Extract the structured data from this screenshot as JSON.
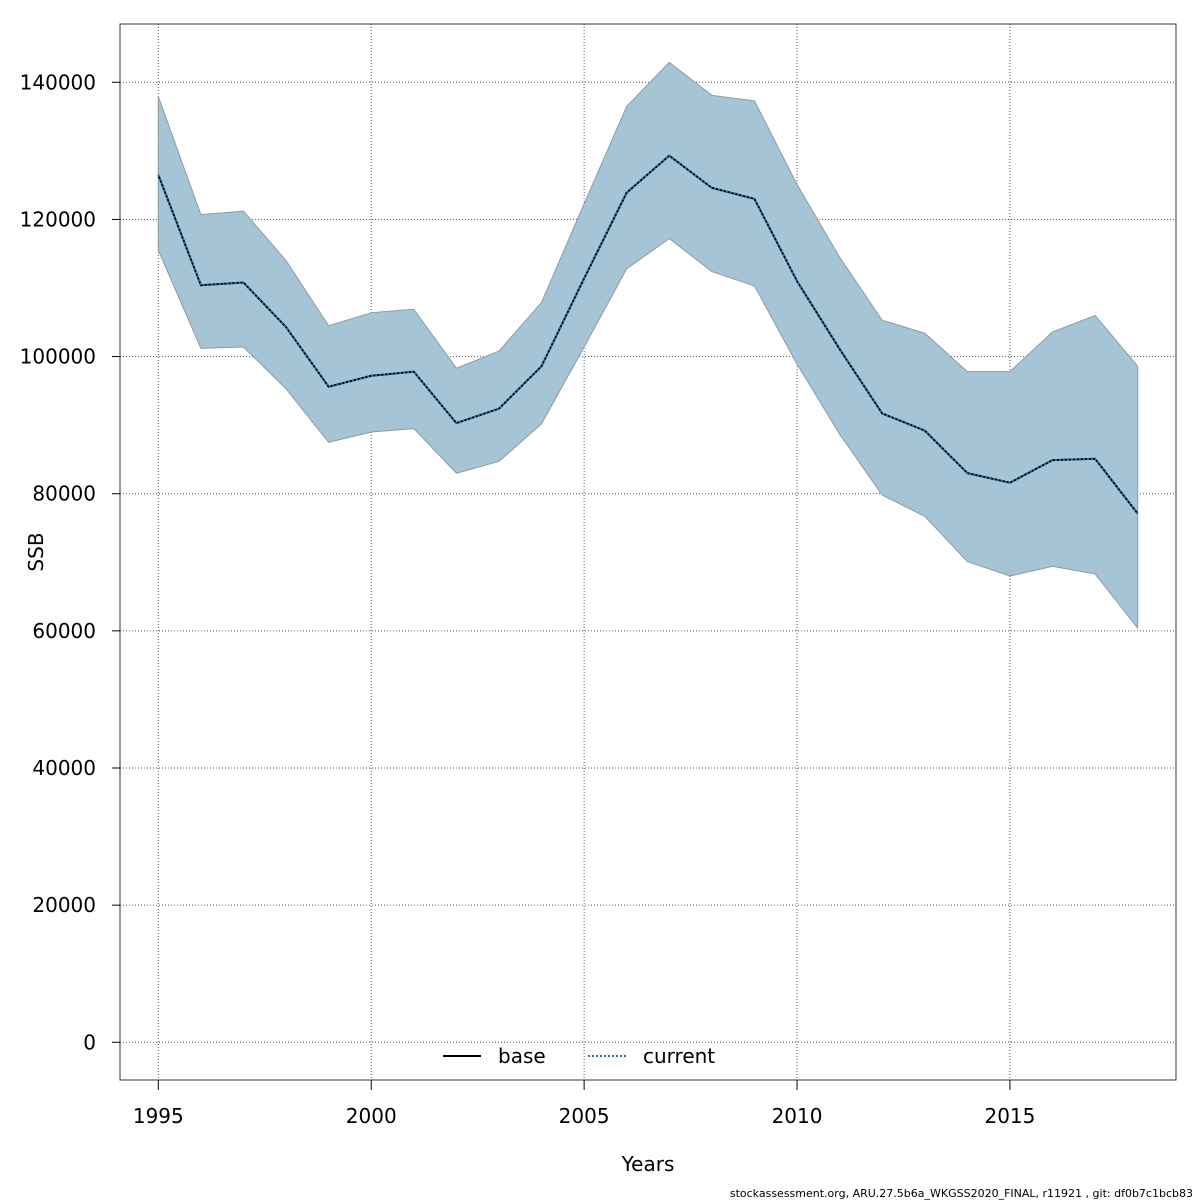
{
  "chart_data": {
    "type": "line",
    "title": "",
    "xlabel": "Years",
    "ylabel": "SSB",
    "xlim": [
      1994.1,
      2018.9
    ],
    "ylim": [
      -5500,
      148500
    ],
    "x_ticks": [
      1995,
      2000,
      2005,
      2010,
      2015
    ],
    "y_ticks": [
      0,
      20000,
      40000,
      60000,
      80000,
      100000,
      120000,
      140000
    ],
    "grid": true,
    "legend_position": "bottom-center",
    "x": [
      1995,
      1996,
      1997,
      1998,
      1999,
      2000,
      2001,
      2002,
      2003,
      2004,
      2005,
      2006,
      2007,
      2008,
      2009,
      2010,
      2011,
      2012,
      2013,
      2014,
      2015,
      2016,
      2017,
      2018
    ],
    "series": [
      {
        "name": "base",
        "style": "solid",
        "color": "#000000",
        "values": [
          126500,
          110400,
          110800,
          104300,
          95600,
          97200,
          97800,
          90300,
          92400,
          98600,
          111400,
          123900,
          129300,
          124600,
          123000,
          111000,
          101100,
          91700,
          89200,
          83000,
          81600,
          84900,
          85100,
          77100
        ]
      },
      {
        "name": "current",
        "style": "dotted",
        "color": "#1f77b4",
        "values": [
          126500,
          110400,
          110800,
          104300,
          95600,
          97200,
          97800,
          90300,
          92400,
          98600,
          111400,
          123900,
          129300,
          124600,
          123000,
          111000,
          101100,
          91700,
          89200,
          83000,
          81600,
          84900,
          85100,
          77100
        ]
      }
    ],
    "band": {
      "upper": [
        137900,
        120700,
        121200,
        114000,
        104500,
        106400,
        106900,
        98300,
        100800,
        107900,
        122300,
        136500,
        142900,
        138100,
        137300,
        125100,
        114500,
        105300,
        103400,
        97800,
        97800,
        103600,
        106000,
        98600
      ],
      "lower": [
        115500,
        101200,
        101400,
        95300,
        87500,
        89000,
        89500,
        83000,
        84700,
        90200,
        101400,
        112800,
        117200,
        112400,
        110300,
        98900,
        88700,
        79800,
        76700,
        70100,
        68000,
        69400,
        68300,
        60400
      ],
      "fill": "#a5c5d6",
      "stroke": "#8e9ba3"
    }
  },
  "footer": "stockassessment.org, ARU.27.5b6a_WKGSS2020_FINAL, r11921 , git: df0b7c1bcb83"
}
